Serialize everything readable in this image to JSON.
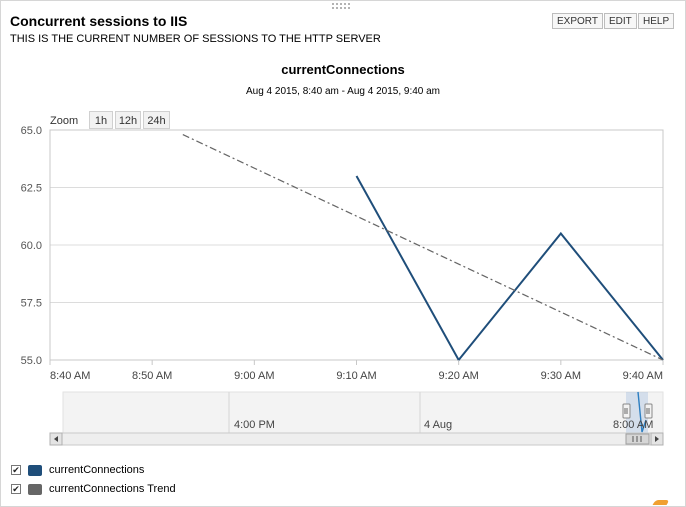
{
  "widget": {
    "title": "Concurrent sessions to IIS",
    "subtitle": "THIS IS THE CURRENT NUMBER OF SESSIONS TO THE HTTP SERVER",
    "toolbar": [
      "EXPORT",
      "EDIT",
      "HELP"
    ]
  },
  "zoom": {
    "label": "Zoom",
    "options": [
      "1h",
      "12h",
      "24h"
    ]
  },
  "chart_data": {
    "type": "line",
    "title": "currentConnections",
    "subtitle": "Aug 4 2015, 8:40 am - Aug 4 2015, 9:40 am",
    "xlabel": "",
    "ylabel": "",
    "x_ticks": [
      "8:40 AM",
      "8:50 AM",
      "9:00 AM",
      "9:10 AM",
      "9:20 AM",
      "9:30 AM",
      "9:40 AM"
    ],
    "x_range": [
      "8:40 AM",
      "9:40 AM"
    ],
    "ylim": [
      55.0,
      65.0
    ],
    "y_ticks": [
      "55.0",
      "57.5",
      "60.0",
      "62.5",
      "65.0"
    ],
    "grid": true,
    "legend_position": "bottom-left",
    "series": [
      {
        "name": "currentConnections",
        "color": "#1f4e7a",
        "style": "solid",
        "x": [
          "9:10 AM",
          "9:20 AM",
          "9:30 AM",
          "9:40 AM"
        ],
        "values": [
          63.0,
          55.0,
          60.5,
          55.0
        ]
      },
      {
        "name": "currentConnections Trend",
        "color": "#666666",
        "style": "dash-dot",
        "x": [
          "8:53 AM",
          "9:40 AM"
        ],
        "values": [
          64.8,
          55.0
        ]
      }
    ],
    "navigator": {
      "labels": [
        "4:00 PM",
        "4 Aug",
        "8:00 AM"
      ]
    }
  }
}
